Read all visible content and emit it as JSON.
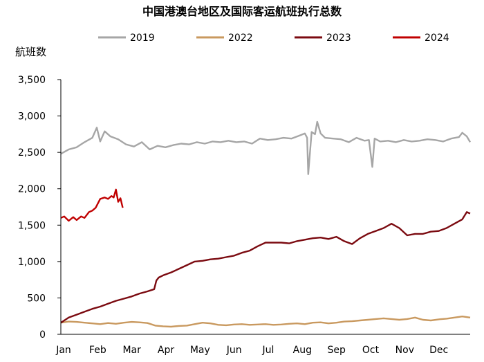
{
  "chart_data": {
    "type": "line",
    "title": "中国港澳台地区及国际客运航班执行总数",
    "ylabel": "航班数",
    "xlabel": "",
    "ylim": [
      0,
      3500
    ],
    "yticks": [
      0,
      500,
      1000,
      1500,
      2000,
      2500,
      3000,
      3500
    ],
    "ytick_labels": [
      "0",
      "500",
      "1,000",
      "1,500",
      "2,000",
      "2,500",
      "3,000",
      "3,500"
    ],
    "x_tick_labels": [
      "Jan",
      "Feb",
      "Mar",
      "Apr",
      "May",
      "Jun",
      "Jul",
      "Aug",
      "Sep",
      "Oct",
      "Nov",
      "Dec"
    ],
    "x_units": "day_of_year",
    "xlim": [
      1,
      365
    ],
    "legend_position": "top",
    "grid": false,
    "series": [
      {
        "name": "2019",
        "color": "#a6a6a6",
        "x": [
          1,
          8,
          15,
          22,
          29,
          33,
          36,
          40,
          45,
          52,
          59,
          66,
          73,
          80,
          87,
          94,
          101,
          108,
          115,
          122,
          129,
          136,
          143,
          150,
          157,
          164,
          171,
          178,
          185,
          192,
          199,
          206,
          213,
          218,
          220,
          221,
          224,
          227,
          229,
          232,
          236,
          243,
          250,
          257,
          264,
          271,
          275,
          278,
          280,
          285,
          292,
          299,
          306,
          313,
          320,
          327,
          334,
          341,
          348,
          355,
          358,
          362,
          365
        ],
        "y": [
          2480,
          2540,
          2570,
          2640,
          2700,
          2840,
          2650,
          2790,
          2720,
          2680,
          2610,
          2580,
          2640,
          2540,
          2590,
          2570,
          2600,
          2620,
          2610,
          2640,
          2620,
          2650,
          2640,
          2660,
          2640,
          2650,
          2620,
          2690,
          2670,
          2680,
          2700,
          2690,
          2730,
          2760,
          2700,
          2200,
          2780,
          2750,
          2920,
          2760,
          2700,
          2690,
          2680,
          2640,
          2700,
          2660,
          2670,
          2300,
          2690,
          2650,
          2660,
          2640,
          2670,
          2650,
          2660,
          2680,
          2670,
          2650,
          2690,
          2710,
          2770,
          2720,
          2640
        ]
      },
      {
        "name": "2022",
        "color": "#c9995f",
        "x": [
          1,
          8,
          15,
          22,
          29,
          36,
          43,
          50,
          57,
          64,
          71,
          78,
          85,
          92,
          99,
          106,
          113,
          120,
          127,
          134,
          141,
          148,
          155,
          162,
          169,
          176,
          183,
          190,
          197,
          204,
          211,
          218,
          225,
          232,
          239,
          246,
          253,
          260,
          267,
          274,
          281,
          288,
          295,
          302,
          309,
          316,
          323,
          330,
          337,
          344,
          351,
          358,
          365
        ],
        "y": [
          160,
          175,
          170,
          160,
          150,
          140,
          155,
          145,
          160,
          170,
          165,
          155,
          120,
          110,
          105,
          115,
          120,
          140,
          160,
          150,
          130,
          125,
          135,
          140,
          130,
          135,
          140,
          130,
          135,
          145,
          150,
          140,
          160,
          165,
          150,
          160,
          175,
          180,
          190,
          200,
          210,
          220,
          210,
          200,
          210,
          230,
          200,
          190,
          205,
          215,
          230,
          245,
          230
        ]
      },
      {
        "name": "2023",
        "color": "#7b0a10",
        "x": [
          1,
          8,
          15,
          22,
          29,
          36,
          43,
          50,
          57,
          64,
          71,
          78,
          84,
          86,
          88,
          92,
          99,
          106,
          113,
          120,
          127,
          134,
          141,
          148,
          155,
          162,
          169,
          176,
          183,
          190,
          197,
          204,
          211,
          218,
          225,
          232,
          239,
          246,
          253,
          260,
          267,
          274,
          281,
          288,
          295,
          302,
          309,
          316,
          323,
          330,
          337,
          344,
          351,
          358,
          362,
          365
        ],
        "y": [
          160,
          230,
          270,
          310,
          350,
          380,
          420,
          460,
          490,
          520,
          560,
          590,
          620,
          740,
          780,
          810,
          850,
          900,
          950,
          1000,
          1010,
          1030,
          1040,
          1060,
          1080,
          1120,
          1150,
          1210,
          1260,
          1260,
          1260,
          1250,
          1280,
          1300,
          1320,
          1330,
          1310,
          1340,
          1280,
          1240,
          1320,
          1380,
          1420,
          1460,
          1520,
          1460,
          1360,
          1380,
          1380,
          1410,
          1420,
          1460,
          1520,
          1580,
          1680,
          1660
        ]
      },
      {
        "name": "2024",
        "color": "#c00000",
        "x": [
          1,
          4,
          8,
          12,
          15,
          19,
          22,
          26,
          29,
          32,
          36,
          40,
          43,
          46,
          48,
          50,
          52,
          54,
          56
        ],
        "y": [
          1600,
          1620,
          1560,
          1610,
          1570,
          1620,
          1600,
          1680,
          1700,
          1740,
          1860,
          1880,
          1860,
          1900,
          1880,
          1990,
          1820,
          1870,
          1740
        ]
      }
    ]
  }
}
